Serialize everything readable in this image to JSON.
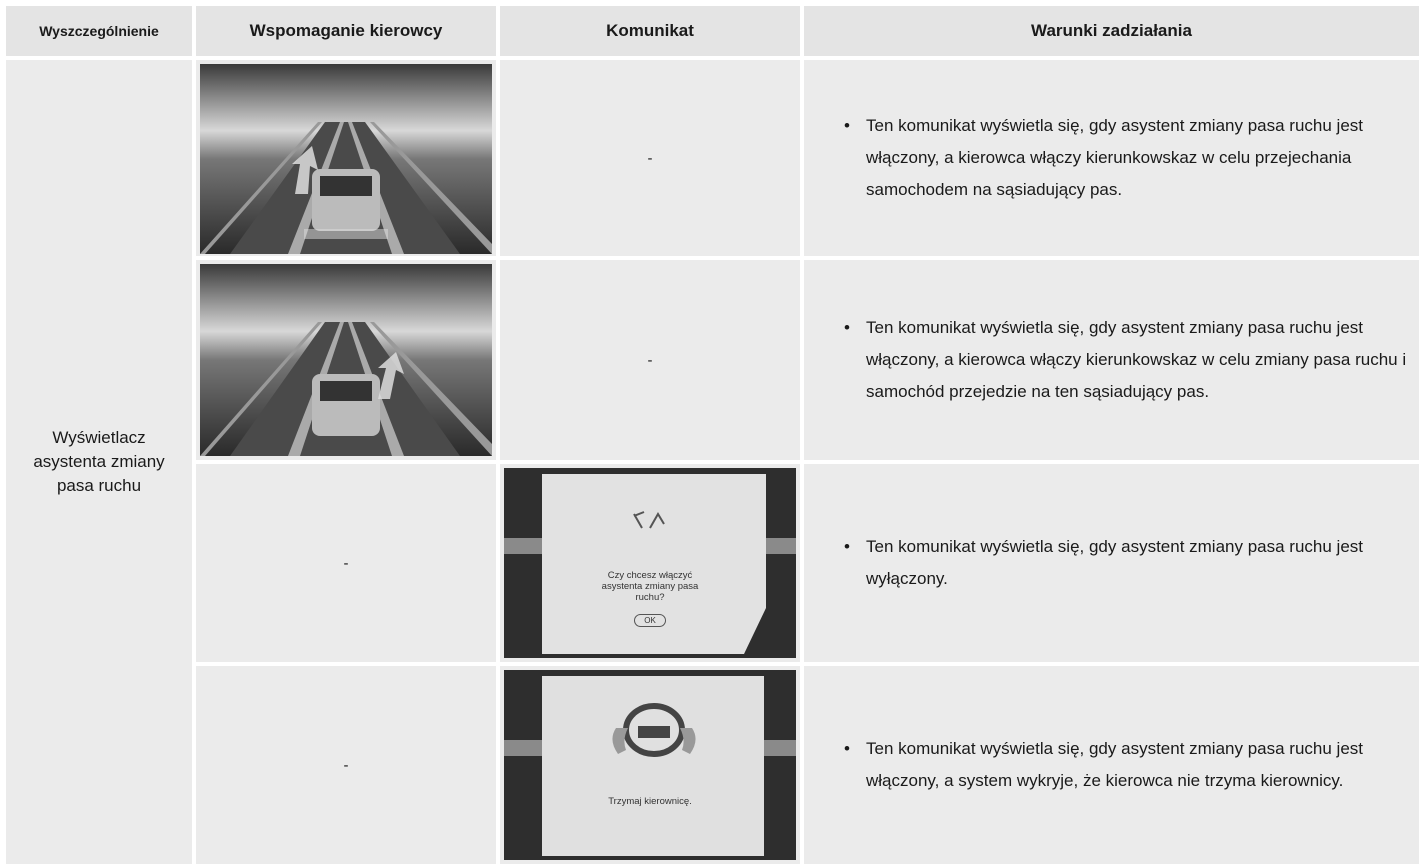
{
  "table": {
    "headers": [
      "Wyszczególnienie",
      "Wspomaganie kierowcy",
      "Komunikat",
      "Warunki zadziałania"
    ],
    "group_label": "Wyświetlacz asystenta zmiany pasa ruchu",
    "rows": [
      {
        "message": "-",
        "condition": "Ten komunikat wyświetla się, gdy asystent zmiany pasa ruchu jest włączony, a kierowca włączy kierunkowskaz w celu przejechania samochodem na sąsiadujący pas."
      },
      {
        "message": "-",
        "condition": "Ten komunikat wyświetla się, gdy asystent zmiany pasa ruchu jest włączony, a kierowca włączy kierunkowskaz w celu zmiany pasa ruchu i samochód przejedzie na ten sąsiadujący pas."
      },
      {
        "assist": "-",
        "message_text": "Czy chcesz włączyć asystenta zmiany pasa ruchu?",
        "message_button": "OK",
        "condition": "Ten komunikat wyświetla się, gdy asystent zmiany pasa ruchu jest wyłączony."
      },
      {
        "assist": "-",
        "message_text": "Trzymaj kierownicę.",
        "condition": "Ten komunikat wyświetla się, gdy asystent zmiany pasa ruchu jest włączony, a system wykryje, że kierowca nie trzyma kierownicy."
      }
    ]
  }
}
